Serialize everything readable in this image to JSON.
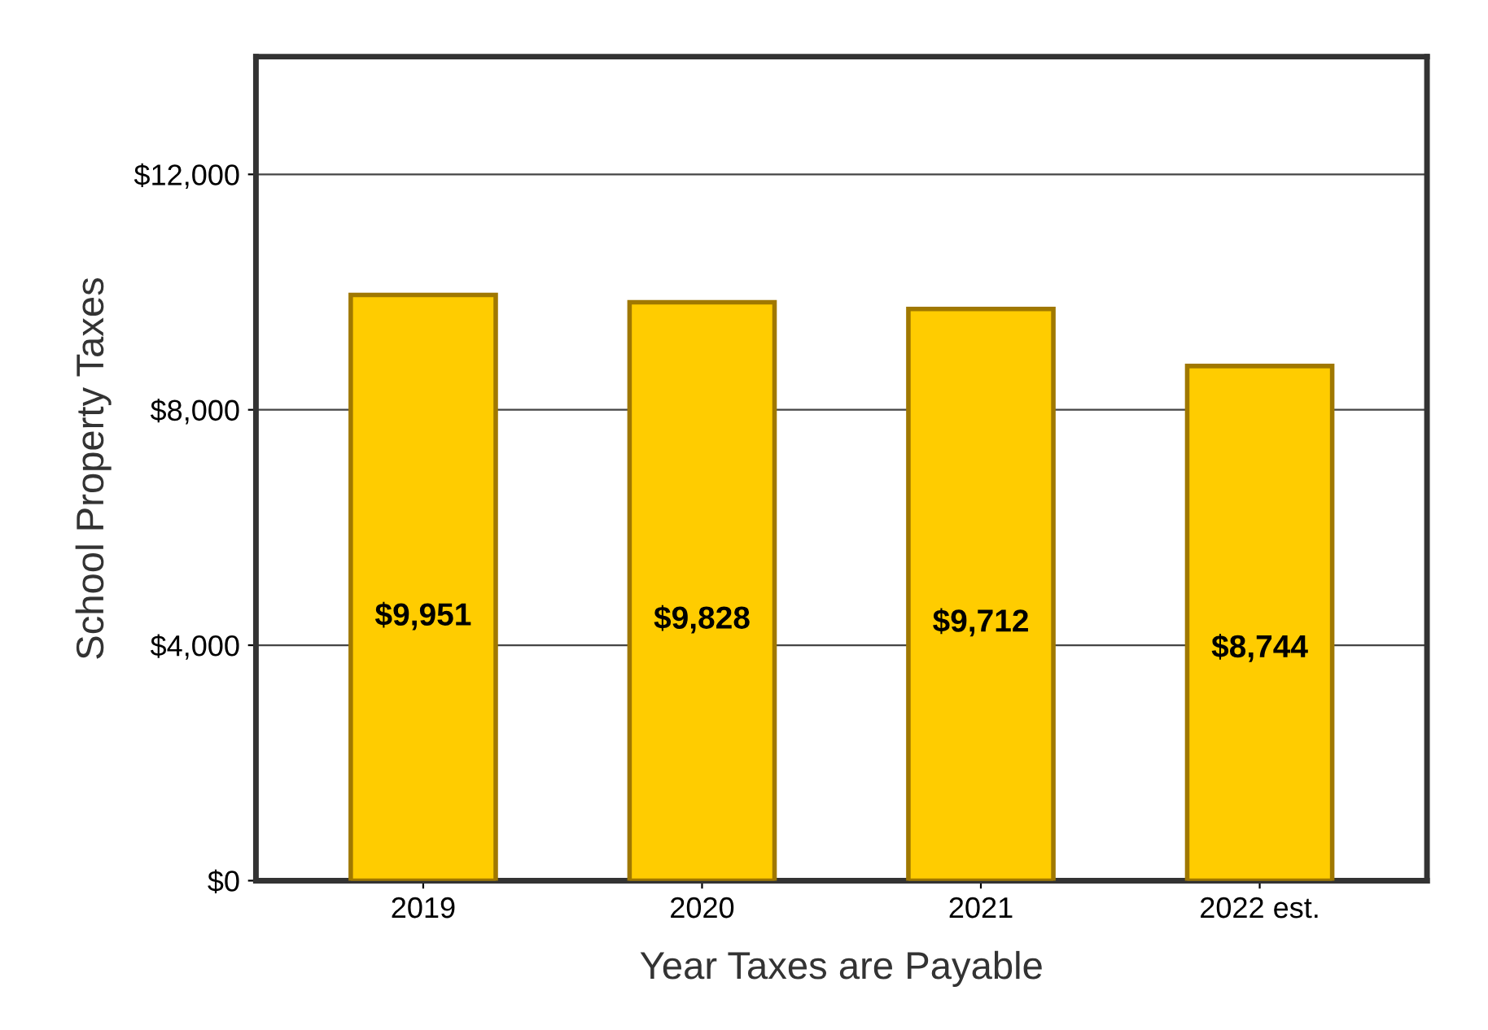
{
  "chart_data": {
    "type": "bar",
    "xlabel": "Year Taxes are Payable",
    "ylabel": "School Property Taxes",
    "categories": [
      "2019",
      "2020",
      "2021",
      "2022 est."
    ],
    "values": [
      9951,
      9828,
      9712,
      8744
    ],
    "value_labels": [
      "$9,951",
      "$9,828",
      "$9,712",
      "$8,744"
    ],
    "color": "#ffcc00",
    "ylim": [
      0,
      14000
    ],
    "yticks": [
      {
        "value": 0,
        "label": "$0"
      },
      {
        "value": 4000,
        "label": "$4,000"
      },
      {
        "value": 8000,
        "label": "$8,000"
      },
      {
        "value": 12000,
        "label": "$12,000"
      }
    ],
    "grid": "y",
    "legend": false
  }
}
